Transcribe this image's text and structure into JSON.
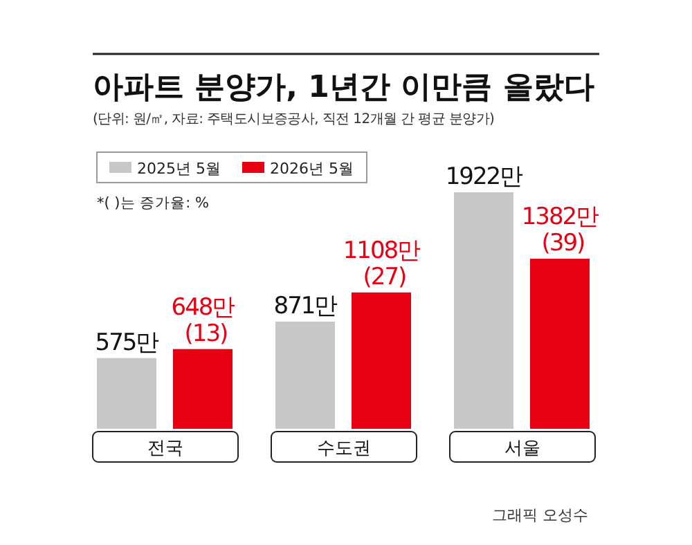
{
  "chart_data": {
    "type": "bar",
    "title": "아파트 분양가, 1년간 이만큼 올랐다",
    "subtitle": "(단위: 원/㎡, 자료: 주택도시보증공사, 직전 12개월 간 평균 분양가)",
    "categories": [
      "전국",
      "수도권",
      "서울"
    ],
    "series": [
      {
        "name": "2025년 5월",
        "color": "#c8c8c8",
        "values": [
          575,
          871,
          1922
        ],
        "value_labels": [
          "575만",
          "871만",
          "1922만"
        ]
      },
      {
        "name": "2026년 5월",
        "color": "#e60012",
        "values": [
          648,
          1108,
          1382
        ],
        "value_labels": [
          "648만 (13)",
          "1108만 (27)",
          "1382만 (39)"
        ]
      }
    ],
    "legend": "top left",
    "annotations": [
      "*( )는 증가율: %",
      "그래픽 오성수"
    ]
  }
}
